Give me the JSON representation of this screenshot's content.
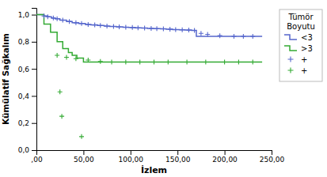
{
  "chart_data": {
    "type": "line",
    "xlabel": "İzlem",
    "ylabel": "Kümülatif Sağkalım",
    "legend_title": "Tümör\nBoyutu",
    "legend": "right",
    "grid": false,
    "xlim": [
      0,
      250
    ],
    "ylim": [
      0.0,
      1.05
    ],
    "xticks": [
      {
        "value": 0,
        "label": ",00"
      },
      {
        "value": 50,
        "label": "50,00"
      },
      {
        "value": 100,
        "label": "100,00"
      },
      {
        "value": 150,
        "label": "150,00"
      },
      {
        "value": 200,
        "label": "200,00"
      },
      {
        "value": 250,
        "label": "250,00"
      }
    ],
    "yticks": [
      {
        "value": 0.0,
        "label": "0,0"
      },
      {
        "value": 0.2,
        "label": "0,2"
      },
      {
        "value": 0.4,
        "label": "0,4"
      },
      {
        "value": 0.6,
        "label": "0,6"
      },
      {
        "value": 0.8,
        "label": "0,8"
      },
      {
        "value": 1.0,
        "label": "1,0"
      }
    ],
    "series": [
      {
        "name": "<3",
        "type": "step",
        "color": "#5566cc",
        "x": [
          0,
          8,
          12,
          16,
          20,
          25,
          32,
          38,
          45,
          52,
          58,
          65,
          72,
          78,
          85,
          92,
          98,
          105,
          112,
          118,
          125,
          132,
          138,
          145,
          152,
          158,
          165,
          170,
          175,
          185,
          215,
          240
        ],
        "values": [
          1.0,
          0.99,
          0.985,
          0.975,
          0.97,
          0.96,
          0.95,
          0.94,
          0.935,
          0.928,
          0.924,
          0.92,
          0.916,
          0.913,
          0.91,
          0.907,
          0.905,
          0.903,
          0.901,
          0.899,
          0.897,
          0.895,
          0.893,
          0.89,
          0.888,
          0.886,
          0.884,
          0.84,
          0.84,
          0.84,
          0.84,
          0.84
        ]
      },
      {
        "name": ">3",
        "type": "step",
        "color": "#33aa33",
        "x": [
          0,
          8,
          15,
          22,
          28,
          34,
          38,
          43,
          50,
          58,
          68,
          80,
          90,
          240
        ],
        "values": [
          1.0,
          0.93,
          0.87,
          0.8,
          0.75,
          0.72,
          0.7,
          0.68,
          0.65,
          0.65,
          0.65,
          0.65,
          0.65,
          0.65
        ]
      },
      {
        "name": "+",
        "type": "scatter",
        "marker": "plus",
        "color": "#5566cc",
        "x": [
          8,
          12,
          18,
          22,
          28,
          35,
          42,
          48,
          55,
          62,
          68,
          75,
          82,
          88,
          95,
          102,
          108,
          115,
          122,
          128,
          135,
          142,
          148,
          155,
          162,
          168,
          175,
          182,
          195,
          210,
          220,
          230
        ],
        "values": [
          0.99,
          0.985,
          0.975,
          0.97,
          0.96,
          0.95,
          0.94,
          0.935,
          0.928,
          0.924,
          0.92,
          0.916,
          0.913,
          0.91,
          0.907,
          0.905,
          0.903,
          0.901,
          0.899,
          0.897,
          0.895,
          0.893,
          0.89,
          0.888,
          0.886,
          0.884,
          0.862,
          0.855,
          0.845,
          0.84,
          0.84,
          0.84
        ]
      },
      {
        "name": "+",
        "type": "scatter",
        "marker": "plus",
        "color": "#33aa33",
        "x": [
          22,
          32,
          42,
          55,
          68,
          80,
          95,
          110,
          125,
          140,
          160,
          180,
          200,
          215,
          230
        ],
        "values": [
          0.7,
          0.685,
          0.675,
          0.665,
          0.655,
          0.65,
          0.65,
          0.65,
          0.65,
          0.65,
          0.65,
          0.65,
          0.65,
          0.65,
          0.65
        ]
      },
      {
        "type": "scatter",
        "marker": "plus",
        "color": "#33aa33",
        "x": [
          25,
          27,
          48
        ],
        "values": [
          0.43,
          0.25,
          0.1
        ]
      }
    ]
  }
}
